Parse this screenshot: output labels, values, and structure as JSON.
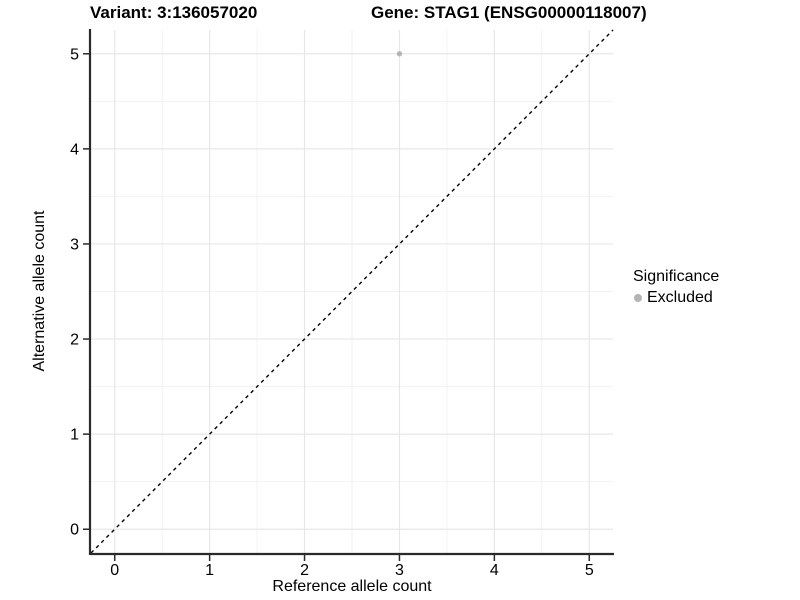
{
  "figure": {
    "title_left": "Variant: 3:136057020",
    "title_right": "Gene: STAG1 (ENSG00000118007)"
  },
  "chart_data": {
    "type": "scatter",
    "xlabel": "Reference allele count",
    "ylabel": "Alternative allele count",
    "xlim": [
      -0.25,
      5.25
    ],
    "ylim": [
      -0.25,
      5.25
    ],
    "xticks": [
      0,
      1,
      2,
      3,
      4,
      5
    ],
    "yticks": [
      0,
      1,
      2,
      3,
      4,
      5
    ],
    "minor_gridline_step": 0.5,
    "grid": true,
    "points": [
      {
        "x": 3,
        "y": 5,
        "series": "Excluded"
      }
    ],
    "reference_line": {
      "type": "abline",
      "slope": 1,
      "intercept": 0,
      "style": "dashed",
      "color": "#000000"
    },
    "legend": {
      "title": "Significance",
      "position": "right",
      "items": [
        {
          "label": "Excluded",
          "color": "#b4b4b4"
        }
      ]
    },
    "colors": {
      "point": "#b4b4b4",
      "axis_line": "#2a2a2a",
      "tick": "#2a2a2a",
      "grid_major": "#e7e7e7",
      "grid_minor": "#f2f2f2",
      "text": "#000000",
      "background": "#ffffff"
    }
  }
}
